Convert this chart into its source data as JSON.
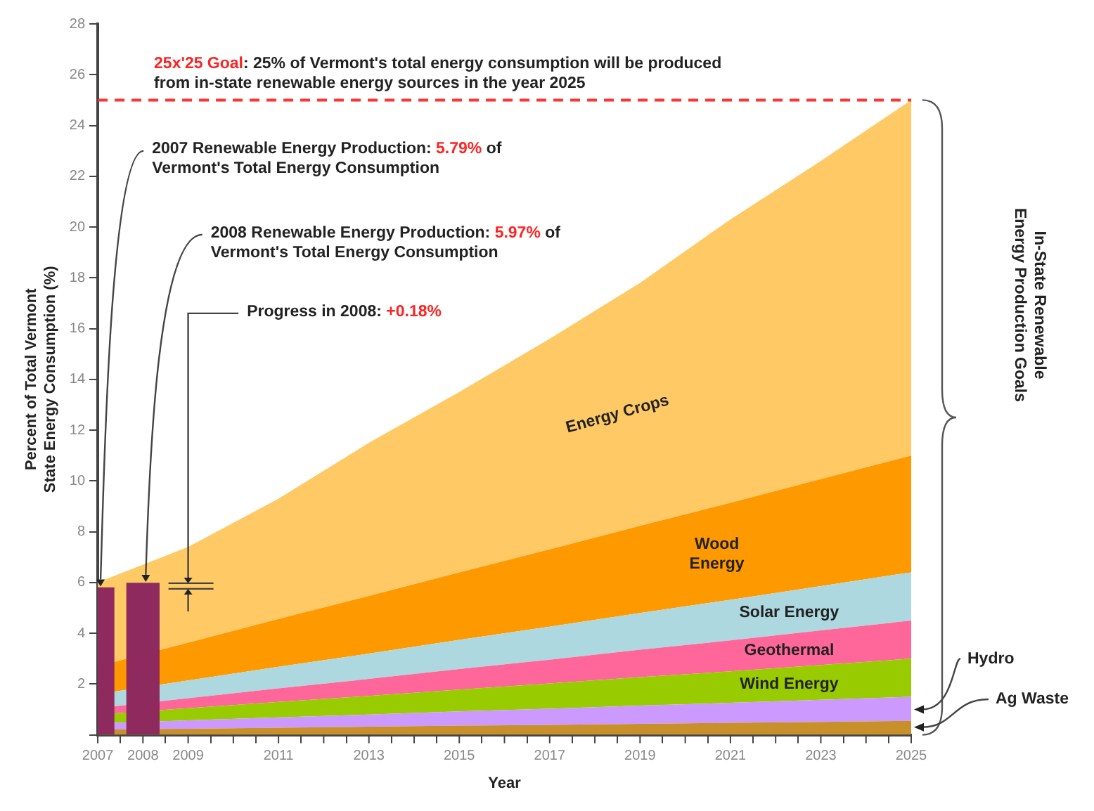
{
  "chart_data": {
    "type": "area",
    "stacked": true,
    "ylabel": "Percent of Total Vermont State Energy Consumption (%)",
    "xlabel": "Year",
    "x": [
      2007,
      2009,
      2011,
      2013,
      2015,
      2017,
      2019,
      2021,
      2023,
      2025
    ],
    "series": [
      {
        "name": "Ag Waste",
        "color": "#c8902a",
        "values": [
          0.2,
          0.24,
          0.28,
          0.32,
          0.36,
          0.39,
          0.43,
          0.47,
          0.51,
          0.55
        ]
      },
      {
        "name": "Hydro",
        "color": "#cc99ff",
        "values": [
          0.25,
          0.33,
          0.41,
          0.48,
          0.56,
          0.64,
          0.72,
          0.79,
          0.87,
          0.95
        ]
      },
      {
        "name": "Wind Energy",
        "color": "#99cc00",
        "values": [
          0.35,
          0.48,
          0.61,
          0.73,
          0.86,
          0.99,
          1.12,
          1.24,
          1.37,
          1.5
        ]
      },
      {
        "name": "Geothermal",
        "color": "#ff6699",
        "values": [
          0.25,
          0.39,
          0.53,
          0.67,
          0.81,
          0.94,
          1.08,
          1.22,
          1.36,
          1.5
        ]
      },
      {
        "name": "Solar Energy",
        "color": "#add8e0",
        "values": [
          0.55,
          0.7,
          0.85,
          1.0,
          1.15,
          1.3,
          1.45,
          1.6,
          1.75,
          1.9
        ]
      },
      {
        "name": "Wood Energy",
        "color": "#ff9900",
        "values": [
          1.1,
          1.49,
          1.88,
          2.27,
          2.66,
          3.04,
          3.43,
          3.82,
          4.21,
          4.6
        ]
      },
      {
        "name": "Energy Crops",
        "color": "#ffc966",
        "values": [
          3.3,
          3.77,
          4.74,
          6.03,
          7.1,
          8.3,
          9.57,
          11.16,
          12.53,
          14.0
        ]
      },
      {
        "type": "bar",
        "color": "#8e2a5e",
        "x": [
          2007,
          2008
        ],
        "values": [
          5.79,
          5.97
        ]
      }
    ],
    "xlim": [
      2007,
      2025
    ],
    "xticks": [
      2007,
      2008,
      2009,
      {
        "value": 2010,
        "label": null
      },
      2011,
      {
        "value": 2012,
        "label": null
      },
      2013,
      {
        "value": 2014,
        "label": null
      },
      2015,
      {
        "value": 2016,
        "label": null
      },
      2017,
      {
        "value": 2018,
        "label": null
      },
      2019,
      {
        "value": 2020,
        "label": null
      },
      2021,
      {
        "value": 2022,
        "label": null
      },
      2023,
      {
        "value": 2024,
        "label": null
      },
      2025
    ],
    "ylim": [
      0,
      28
    ],
    "yticks": [
      {
        "value": 0,
        "label": null
      },
      2,
      4,
      6,
      8,
      10,
      12,
      14,
      16,
      18,
      20,
      22,
      24,
      26,
      28
    ],
    "ref_lines": [
      {
        "axis": "y",
        "value": 25,
        "color": "#ff3333",
        "line_style": "dashed",
        "label": "25x'25 Goal: 25% of Vermont's total energy consumption will be produced from in-state renewable energy sources in the year 2025"
      }
    ],
    "annotations": [
      "2007 Renewable Energy Production: 5.79% of Vermont's Total Energy Consumption",
      "2008 Renewable Energy Production: 5.97% of Vermont's Total Energy Consumption",
      {
        "text": "Progress in 2008: +0.18%",
        "x": 2009,
        "y": 5.97
      },
      "In-State Renewable Energy Production Goals"
    ],
    "grid": false,
    "legend": false,
    "marker": "none"
  }
}
